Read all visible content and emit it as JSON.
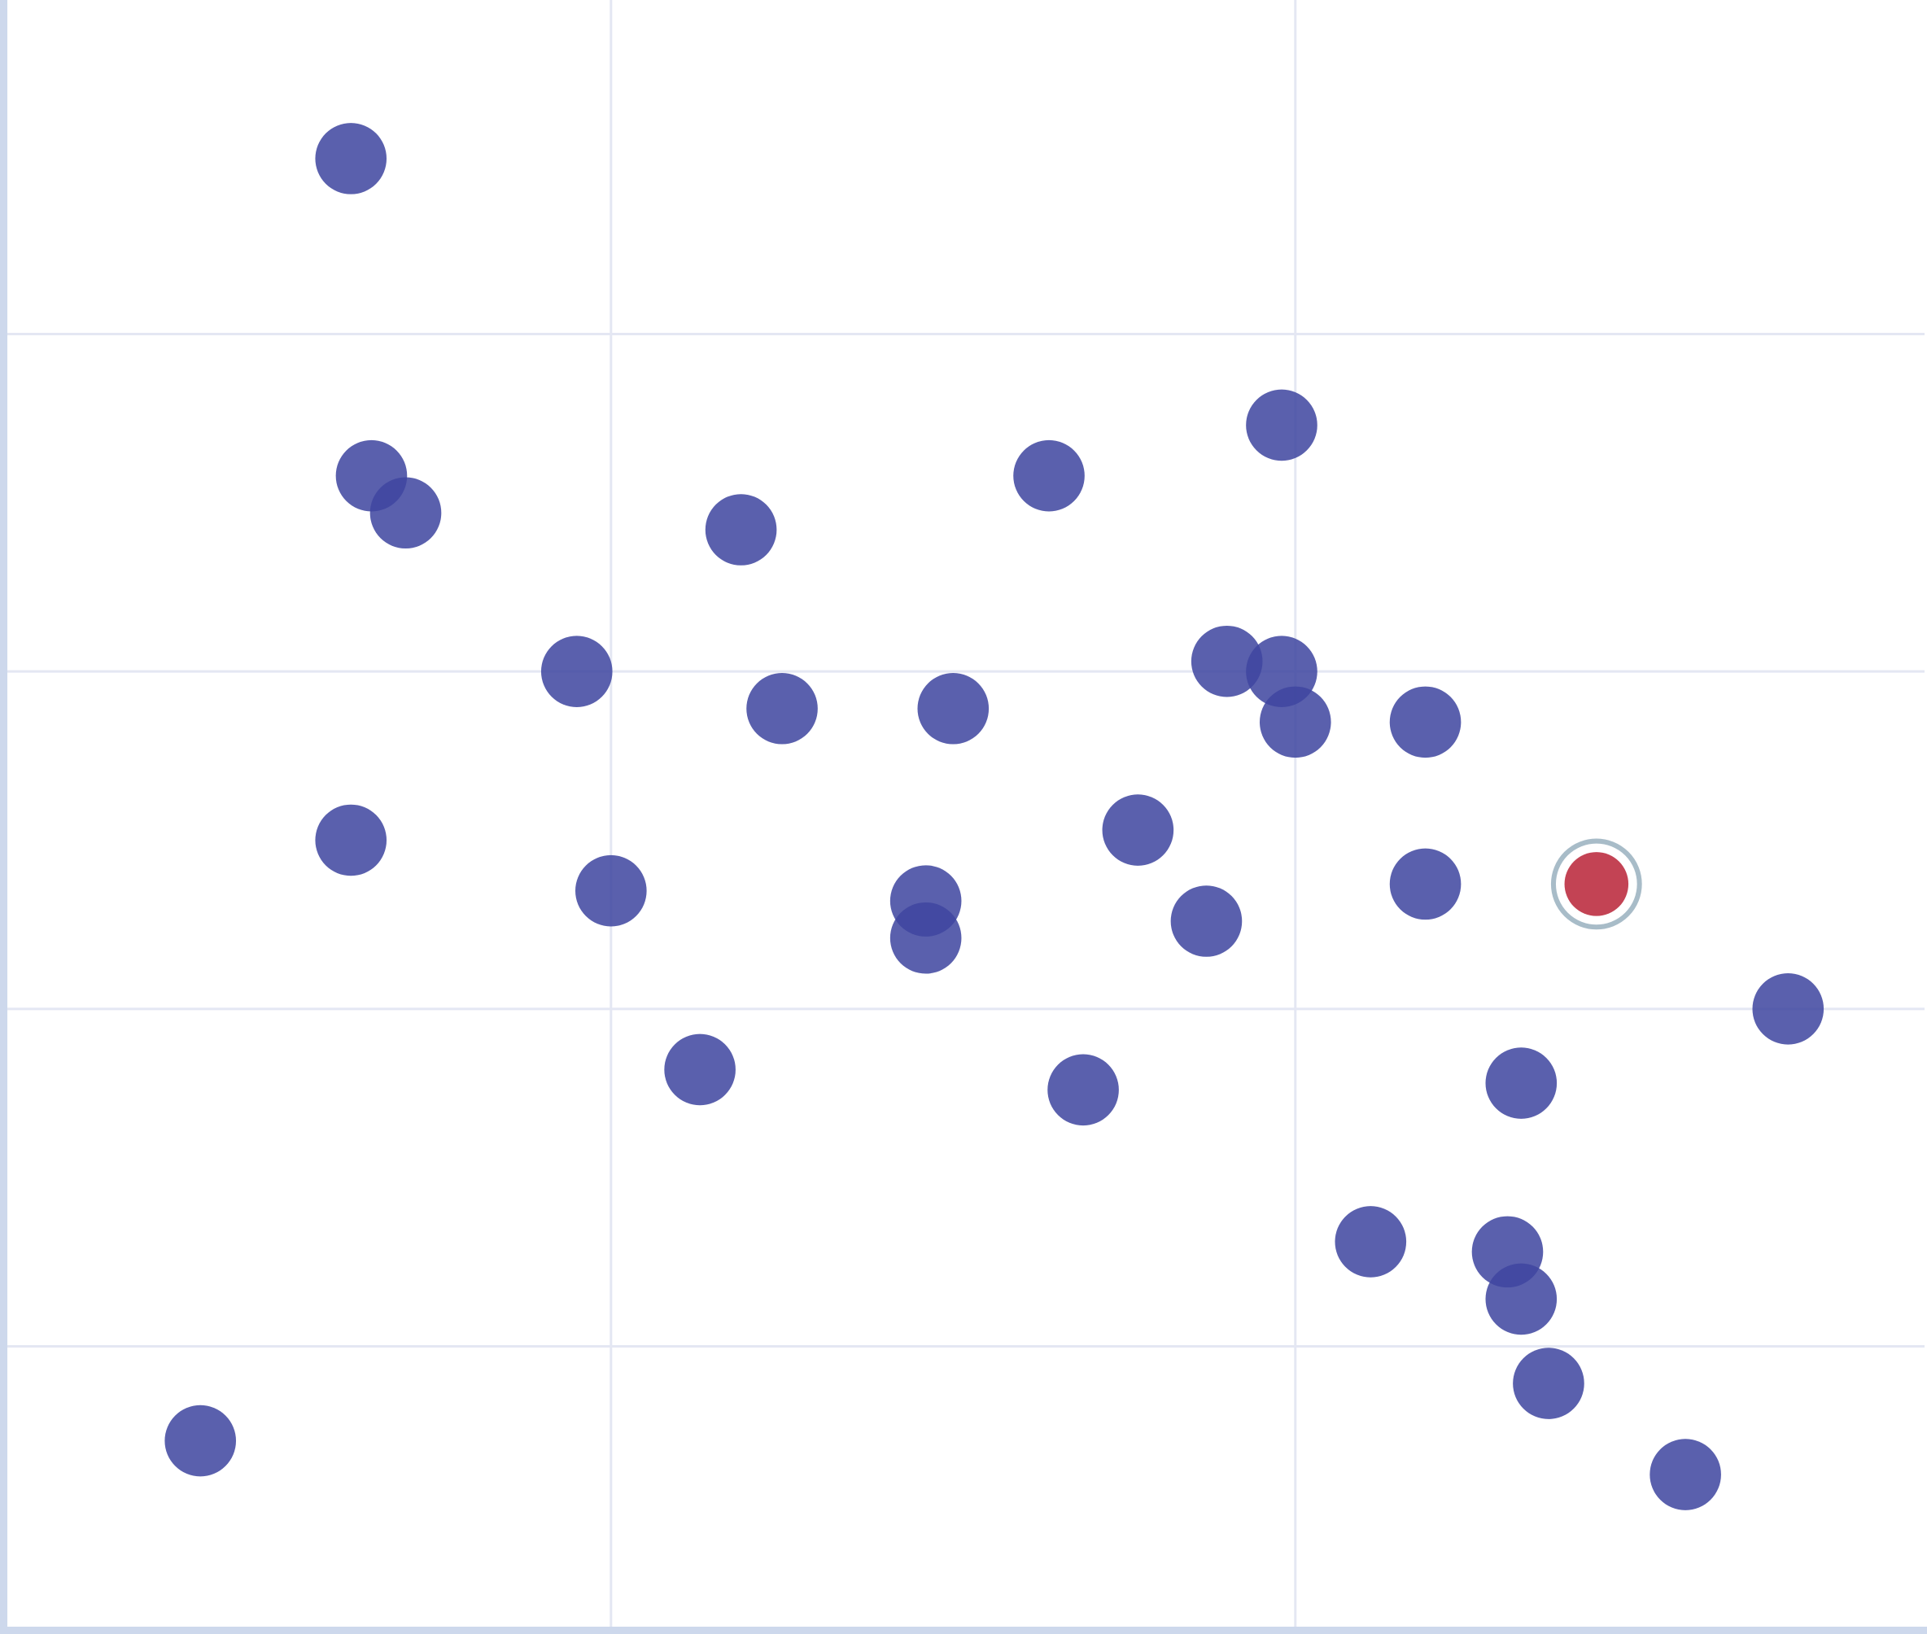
{
  "chart_data": {
    "type": "scatter",
    "title": "",
    "xlabel": "",
    "ylabel": "",
    "xlim": [
      0.118,
      2.923
    ],
    "ylim": [
      0.162,
      4.99
    ],
    "x_gridlines": [
      1,
      2
    ],
    "y_gridlines": [
      1,
      2,
      3,
      4
    ],
    "grid": true,
    "legend": "none",
    "colors": {
      "point": "#3f46a0",
      "highlight": "#c0394b",
      "highlight_ring": "#a8bcc8",
      "axis": "#cdd8ec",
      "grid": "#e4e7f3"
    },
    "points": [
      {
        "x": 0.62,
        "y": 4.52
      },
      {
        "x": 0.65,
        "y": 3.58
      },
      {
        "x": 0.7,
        "y": 3.47
      },
      {
        "x": 1.19,
        "y": 3.42
      },
      {
        "x": 1.64,
        "y": 3.58
      },
      {
        "x": 1.98,
        "y": 3.73
      },
      {
        "x": 0.95,
        "y": 3.0
      },
      {
        "x": 1.25,
        "y": 2.89
      },
      {
        "x": 1.5,
        "y": 2.89
      },
      {
        "x": 1.9,
        "y": 3.03
      },
      {
        "x": 1.98,
        "y": 3.0
      },
      {
        "x": 2.0,
        "y": 2.85
      },
      {
        "x": 2.19,
        "y": 2.85
      },
      {
        "x": 0.62,
        "y": 2.5
      },
      {
        "x": 1.0,
        "y": 2.35
      },
      {
        "x": 1.46,
        "y": 2.32
      },
      {
        "x": 1.46,
        "y": 2.21
      },
      {
        "x": 1.77,
        "y": 2.53
      },
      {
        "x": 1.87,
        "y": 2.26
      },
      {
        "x": 2.19,
        "y": 2.37
      },
      {
        "x": 2.44,
        "y": 2.37,
        "highlighted": true
      },
      {
        "x": 2.72,
        "y": 2.0
      },
      {
        "x": 1.13,
        "y": 1.82
      },
      {
        "x": 1.69,
        "y": 1.76
      },
      {
        "x": 2.33,
        "y": 1.78
      },
      {
        "x": 2.11,
        "y": 1.31
      },
      {
        "x": 2.31,
        "y": 1.28
      },
      {
        "x": 2.33,
        "y": 1.14
      },
      {
        "x": 2.37,
        "y": 0.89
      },
      {
        "x": 0.4,
        "y": 0.72
      },
      {
        "x": 2.57,
        "y": 0.62
      }
    ]
  }
}
